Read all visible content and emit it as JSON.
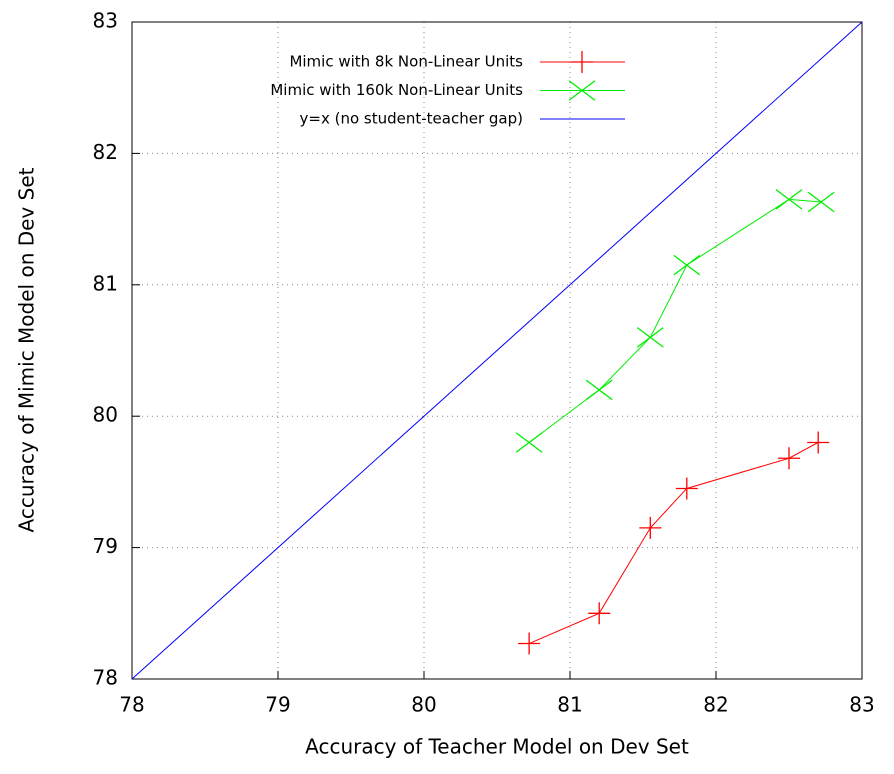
{
  "chart_data": {
    "type": "line",
    "xlabel": "Accuracy of Teacher Model on Dev Set",
    "ylabel": "Accuracy of Mimic Model on Dev Set",
    "xlim": [
      78,
      83
    ],
    "ylim": [
      78,
      83
    ],
    "xticks": [
      78,
      79,
      80,
      81,
      82,
      83
    ],
    "yticks": [
      78,
      79,
      80,
      81,
      82,
      83
    ],
    "grid": true,
    "legend": "top-left",
    "series": [
      {
        "name": "Mimic with 8k Non-Linear Units",
        "color": "#ff0000",
        "marker": "plus",
        "x": [
          80.72,
          81.2,
          81.55,
          81.8,
          82.5,
          82.7
        ],
        "values": [
          78.27,
          78.5,
          79.15,
          79.45,
          79.68,
          79.8
        ]
      },
      {
        "name": "Mimic with 160k Non-Linear Units",
        "color": "#00ee00",
        "marker": "cross",
        "x": [
          80.72,
          81.2,
          81.55,
          81.8,
          82.5,
          82.72
        ],
        "values": [
          79.8,
          80.2,
          80.6,
          81.15,
          81.65,
          81.63
        ]
      },
      {
        "name": "y=x (no student-teacher gap)",
        "color": "#0000ff",
        "marker": "none",
        "x": [
          78,
          83
        ],
        "values": [
          78,
          83
        ]
      }
    ]
  }
}
